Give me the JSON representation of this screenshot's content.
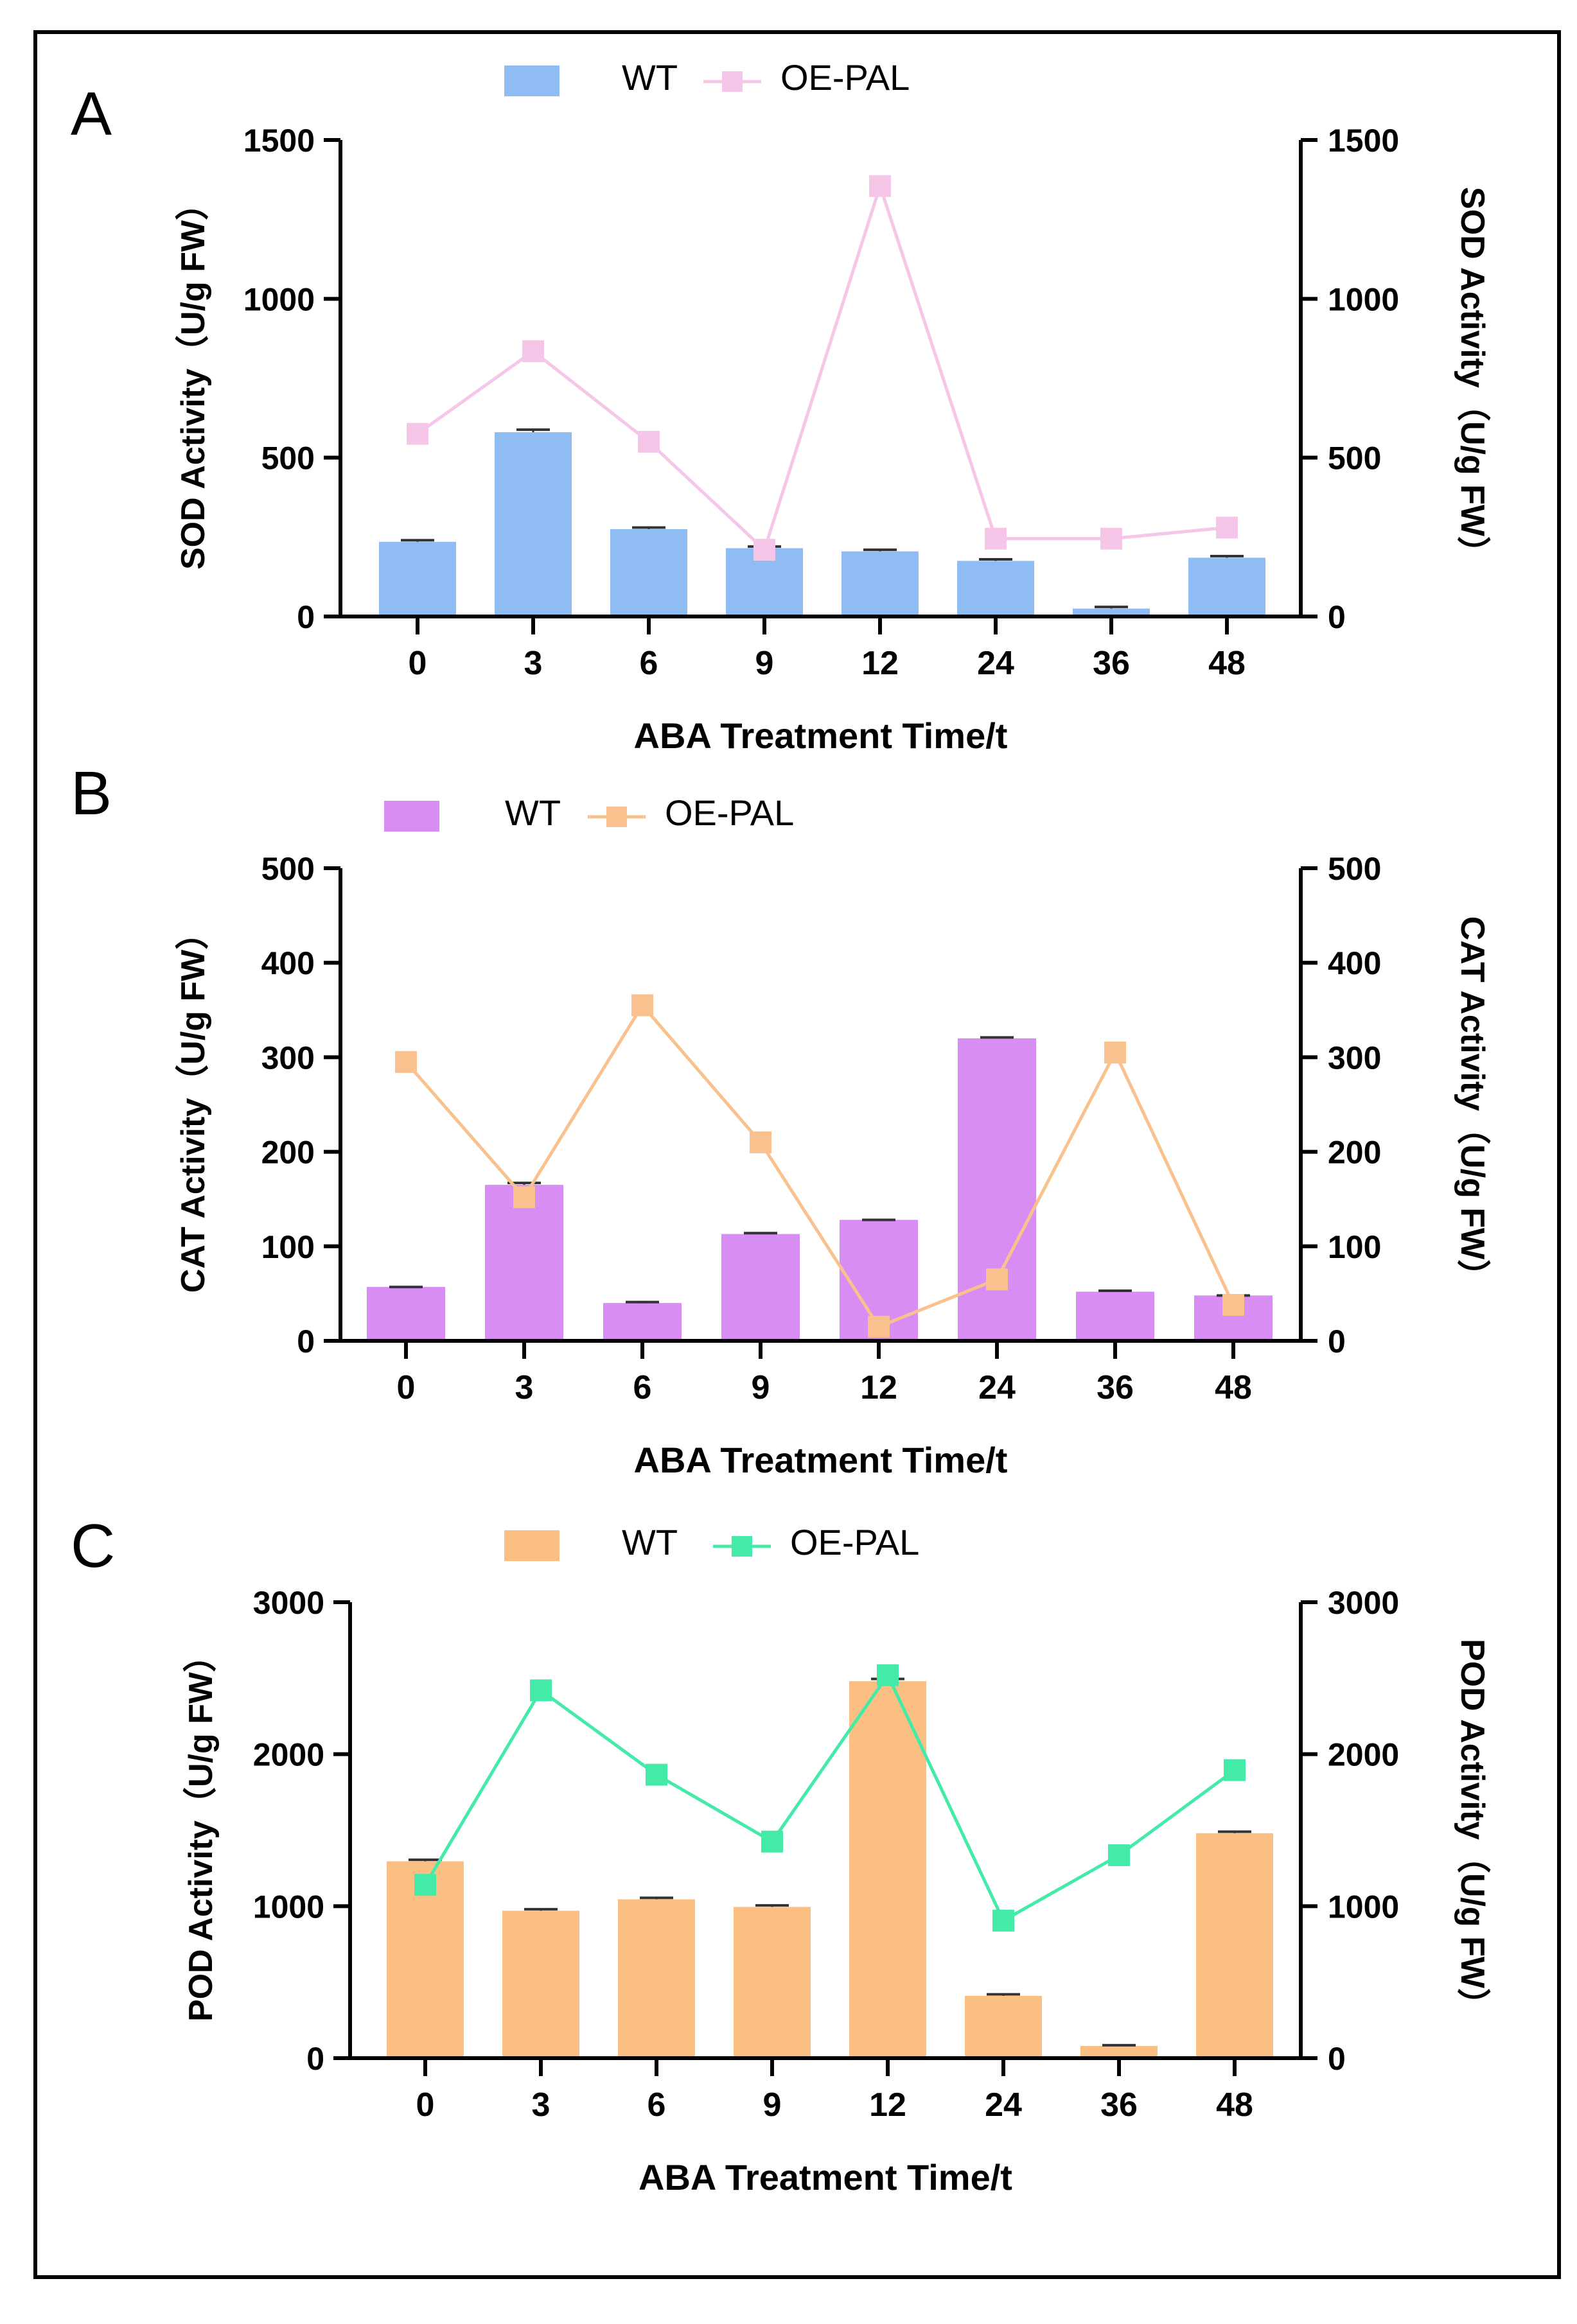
{
  "chart_data": [
    {
      "type": "bar",
      "panel_label": "A",
      "categories": [
        "0",
        "3",
        "6",
        "9",
        "12",
        "24",
        "36",
        "48"
      ],
      "xlabel": "ABA Treatment Time/t",
      "ylabel": "SOD Activity（U/g FW）",
      "y2label": "SOD Activity（U/g FW）",
      "ylim": [
        0,
        1500
      ],
      "yticks": [
        "0",
        "500",
        "1000",
        "1500"
      ],
      "bar_color": "#8fbcf3",
      "line_color": "#f5c6e8",
      "series": [
        {
          "name": "WT",
          "kind": "bar",
          "values": [
            235,
            580,
            275,
            215,
            205,
            175,
            25,
            185
          ],
          "errors": [
            5,
            8,
            5,
            5,
            5,
            5,
            5,
            5
          ]
        },
        {
          "name": "OE-PAL",
          "kind": "line",
          "values": [
            575,
            835,
            550,
            210,
            1355,
            245,
            245,
            280
          ]
        }
      ]
    },
    {
      "type": "bar",
      "panel_label": "B",
      "categories": [
        "0",
        "3",
        "6",
        "9",
        "12",
        "24",
        "36",
        "48"
      ],
      "xlabel": "ABA Treatment Time/t",
      "ylabel": "CAT Activity（U/g FW）",
      "y2label": "CAT Activity（U/g FW）",
      "ylim": [
        0,
        500
      ],
      "yticks": [
        "0",
        "100",
        "200",
        "300",
        "400",
        "500"
      ],
      "bar_color": "#d88df2",
      "line_color": "#f9c18d",
      "series": [
        {
          "name": "WT",
          "kind": "bar",
          "values": [
            57,
            165,
            40,
            113,
            128,
            320,
            52,
            48
          ],
          "errors": [
            0,
            2,
            1,
            1,
            0,
            1,
            1,
            0
          ]
        },
        {
          "name": "OE-PAL",
          "kind": "line",
          "values": [
            295,
            152,
            355,
            210,
            15,
            65,
            305,
            38
          ]
        }
      ]
    },
    {
      "type": "bar",
      "panel_label": "C",
      "categories": [
        "0",
        "3",
        "6",
        "9",
        "12",
        "24",
        "36",
        "48"
      ],
      "xlabel": "ABA Treatment Time/t",
      "ylabel": "POD Activity（U/g FW）",
      "y2label": "POD Activity（U/g FW）",
      "ylim": [
        0,
        3000
      ],
      "yticks": [
        "0",
        "1000",
        "2000",
        "3000"
      ],
      "bar_color": "#fbbf84",
      "line_color": "#43eaa8",
      "series": [
        {
          "name": "WT",
          "kind": "bar",
          "values": [
            1295,
            970,
            1045,
            995,
            2480,
            410,
            80,
            1480
          ],
          "errors": [
            10,
            10,
            10,
            10,
            15,
            10,
            5,
            10
          ]
        },
        {
          "name": "OE-PAL",
          "kind": "line",
          "values": [
            1140,
            2420,
            1865,
            1425,
            2520,
            905,
            1335,
            1895
          ]
        }
      ]
    }
  ]
}
